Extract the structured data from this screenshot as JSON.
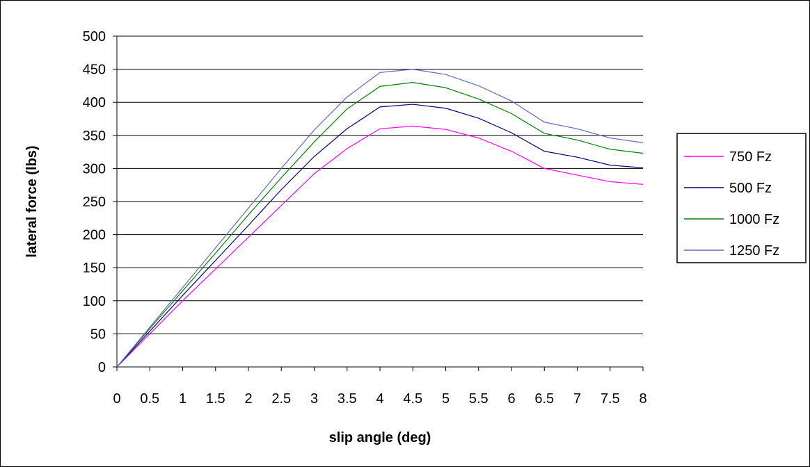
{
  "chart_data": {
    "type": "line",
    "title": "",
    "xlabel": "slip angle (deg)",
    "ylabel": "lateral force (lbs)",
    "xlim": [
      0,
      8
    ],
    "ylim": [
      0,
      500
    ],
    "grid": "horizontal",
    "legend_position": "right",
    "x": [
      0,
      0.5,
      1,
      1.5,
      2,
      2.5,
      3,
      3.5,
      4,
      4.5,
      5,
      5.5,
      6,
      6.5,
      7,
      7.5,
      8
    ],
    "x_tick_labels": [
      "0",
      "0.5",
      "1",
      "1.5",
      "2",
      "2.5",
      "3",
      "3.5",
      "4",
      "4.5",
      "5",
      "5.5",
      "6",
      "6.5",
      "7",
      "7.5",
      "8"
    ],
    "y_ticks": [
      0,
      50,
      100,
      150,
      200,
      250,
      300,
      350,
      400,
      450,
      500
    ],
    "y_tick_labels": [
      "0",
      "50",
      "100",
      "150",
      "200",
      "250",
      "300",
      "350",
      "400",
      "450",
      "500"
    ],
    "series": [
      {
        "name": "750 Fz",
        "color": "#ff00ff",
        "values": [
          0,
          50,
          100,
          148,
          196,
          244,
          292,
          330,
          360,
          364,
          359,
          346,
          326,
          300,
          290,
          280,
          276
        ]
      },
      {
        "name": "500 Fz",
        "color": "#000080",
        "values": [
          0,
          54,
          108,
          161,
          214,
          268,
          318,
          360,
          393,
          397,
          391,
          376,
          354,
          326,
          317,
          305,
          301
        ]
      },
      {
        "name": "1000 Fz",
        "color": "#008000",
        "values": [
          0,
          58,
          115,
          172,
          230,
          286,
          340,
          390,
          424,
          430,
          422,
          405,
          383,
          353,
          343,
          329,
          323
        ]
      },
      {
        "name": "1250 Fz",
        "color": "#6666cc",
        "values": [
          0,
          60,
          120,
          180,
          240,
          300,
          358,
          408,
          445,
          450,
          442,
          425,
          402,
          370,
          360,
          346,
          339
        ]
      }
    ]
  }
}
